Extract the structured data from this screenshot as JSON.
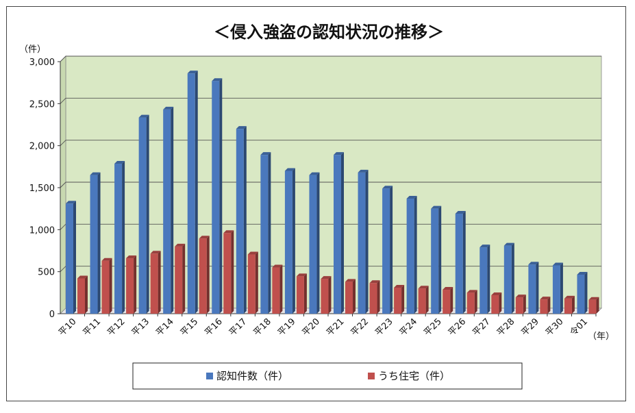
{
  "chart_data": {
    "type": "bar",
    "title": "＜侵入強盗の認知状況の推移＞",
    "y_unit": "（件）",
    "x_unit": "（年）",
    "ylim": [
      0,
      3000
    ],
    "yticks": [
      "0",
      "500",
      "1,000",
      "1,500",
      "2,000",
      "2,500",
      "3,000"
    ],
    "ytick_values": [
      0,
      500,
      1000,
      1500,
      2000,
      2500,
      3000
    ],
    "categories": [
      "平10",
      "平11",
      "平12",
      "平13",
      "平14",
      "平15",
      "平16",
      "平17",
      "平18",
      "平19",
      "平20",
      "平21",
      "平22",
      "平23",
      "平24",
      "平25",
      "平26",
      "平27",
      "平28",
      "平29",
      "平30",
      "令01"
    ],
    "series": [
      {
        "name": "認知件数（件）",
        "color": "#4a78bd",
        "values": [
          1310,
          1650,
          1785,
          2335,
          2430,
          2860,
          2770,
          2200,
          1890,
          1700,
          1650,
          1890,
          1680,
          1490,
          1370,
          1250,
          1190,
          790,
          810,
          585,
          575,
          465
        ]
      },
      {
        "name": "うち住宅（件）",
        "color": "#c0504d",
        "values": [
          420,
          630,
          660,
          715,
          800,
          895,
          960,
          705,
          550,
          445,
          415,
          380,
          365,
          310,
          300,
          285,
          250,
          220,
          195,
          170,
          180,
          165
        ]
      }
    ],
    "grid": true,
    "plot_background": "#d9e8c4",
    "legend_position": "bottom"
  }
}
